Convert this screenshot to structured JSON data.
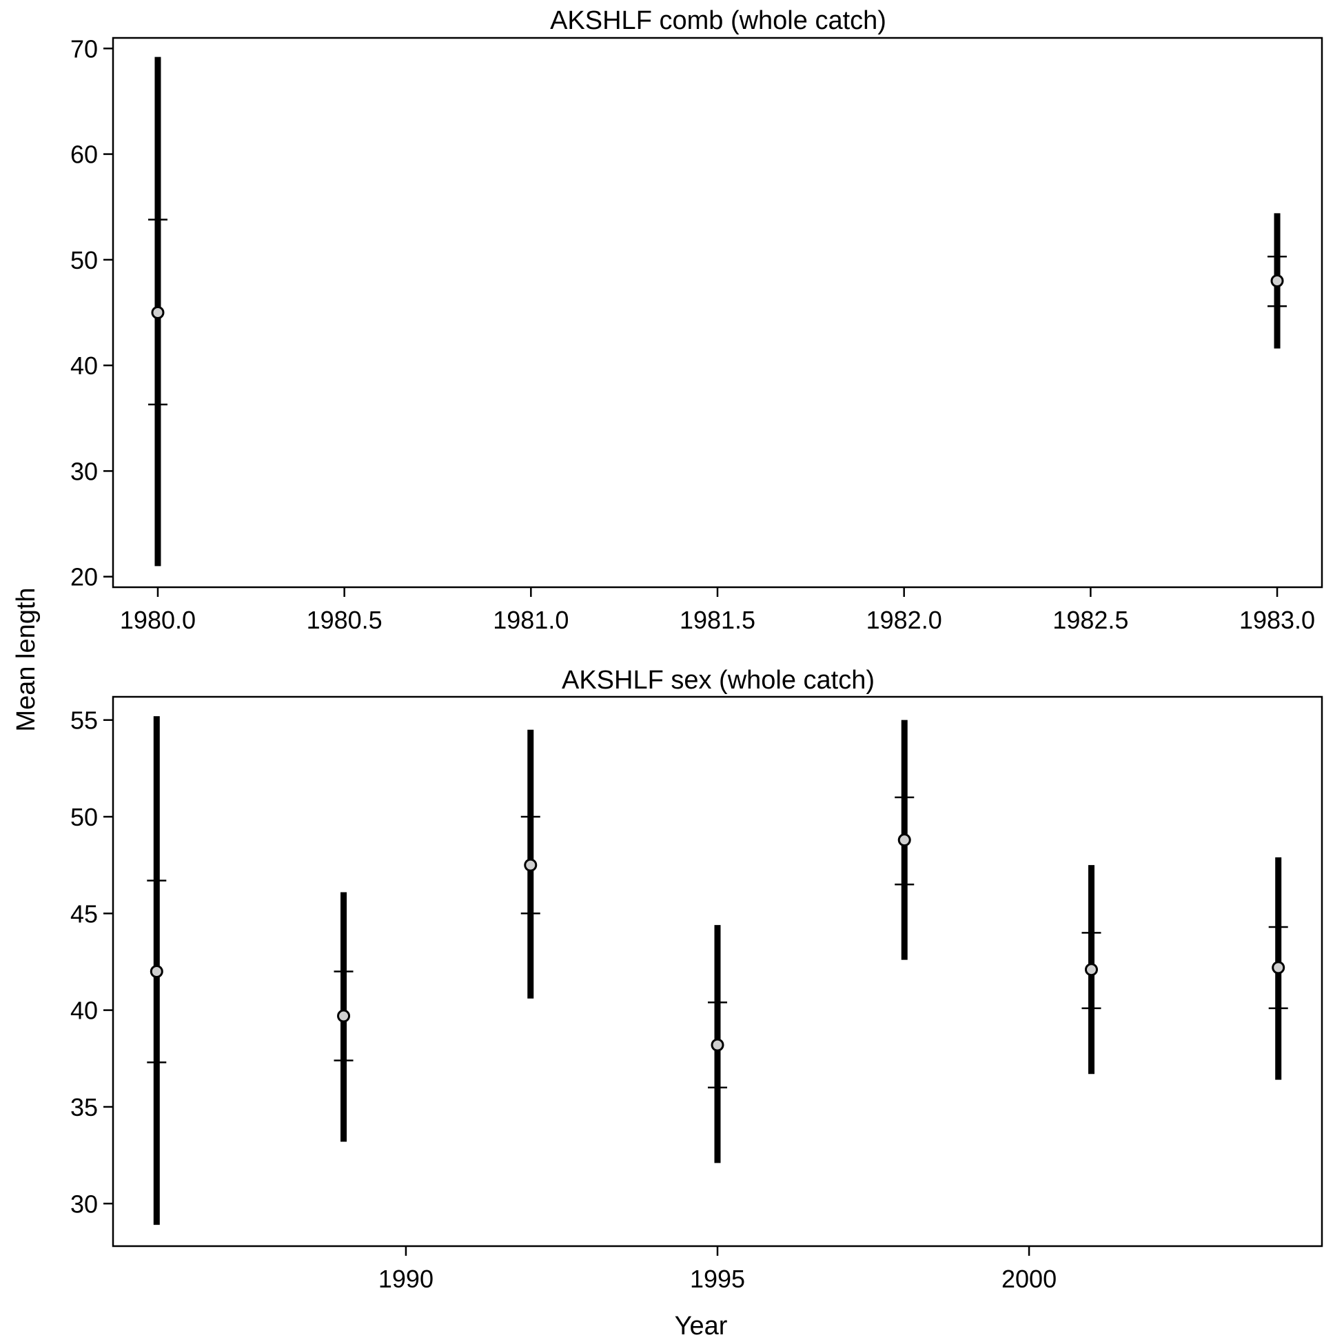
{
  "figure": {
    "xlabel": "Year",
    "ylabel": "Mean length"
  },
  "chart_data": [
    {
      "type": "scatter",
      "title": "AKSHLF comb (whole catch)",
      "xlim": [
        1979.88,
        1983.12
      ],
      "ylim": [
        19,
        71
      ],
      "xticks": [
        1980.0,
        1980.5,
        1981.0,
        1981.5,
        1982.0,
        1982.5,
        1983.0
      ],
      "xtick_labels": [
        "1980.0",
        "1980.5",
        "1981.0",
        "1981.5",
        "1982.0",
        "1982.5",
        "1983.0"
      ],
      "yticks": [
        20,
        30,
        40,
        50,
        60,
        70
      ],
      "ytick_labels": [
        "20",
        "30",
        "40",
        "50",
        "60",
        "70"
      ],
      "points": [
        {
          "x": 1980,
          "mean": 45.0,
          "ci_low": 21.0,
          "ci_high": 69.2,
          "sd_low": 36.3,
          "sd_high": 53.8
        },
        {
          "x": 1983,
          "mean": 48.0,
          "ci_low": 41.6,
          "ci_high": 54.4,
          "sd_low": 45.6,
          "sd_high": 50.3
        }
      ]
    },
    {
      "type": "scatter",
      "title": "AKSHLF sex (whole catch)",
      "xlim": [
        1985.3,
        2004.7
      ],
      "ylim": [
        27.8,
        56.2
      ],
      "xticks": [
        1990,
        1995,
        2000
      ],
      "xtick_labels": [
        "1990",
        "1995",
        "2000"
      ],
      "yticks": [
        30,
        35,
        40,
        45,
        50,
        55
      ],
      "ytick_labels": [
        "30",
        "35",
        "40",
        "45",
        "50",
        "55"
      ],
      "points": [
        {
          "x": 1986,
          "mean": 42.0,
          "ci_low": 28.9,
          "ci_high": 55.2,
          "sd_low": 37.3,
          "sd_high": 46.7
        },
        {
          "x": 1989,
          "mean": 39.7,
          "ci_low": 33.2,
          "ci_high": 46.1,
          "sd_low": 37.4,
          "sd_high": 42.0
        },
        {
          "x": 1992,
          "mean": 47.5,
          "ci_low": 40.6,
          "ci_high": 54.5,
          "sd_low": 45.0,
          "sd_high": 50.0
        },
        {
          "x": 1995,
          "mean": 38.2,
          "ci_low": 32.1,
          "ci_high": 44.4,
          "sd_low": 36.0,
          "sd_high": 40.4
        },
        {
          "x": 1998,
          "mean": 48.8,
          "ci_low": 42.6,
          "ci_high": 55.0,
          "sd_low": 46.5,
          "sd_high": 51.0
        },
        {
          "x": 2001,
          "mean": 42.1,
          "ci_low": 36.7,
          "ci_high": 47.5,
          "sd_low": 40.1,
          "sd_high": 44.0
        },
        {
          "x": 2004,
          "mean": 42.2,
          "ci_low": 36.4,
          "ci_high": 47.9,
          "sd_low": 40.1,
          "sd_high": 44.3
        }
      ]
    }
  ]
}
